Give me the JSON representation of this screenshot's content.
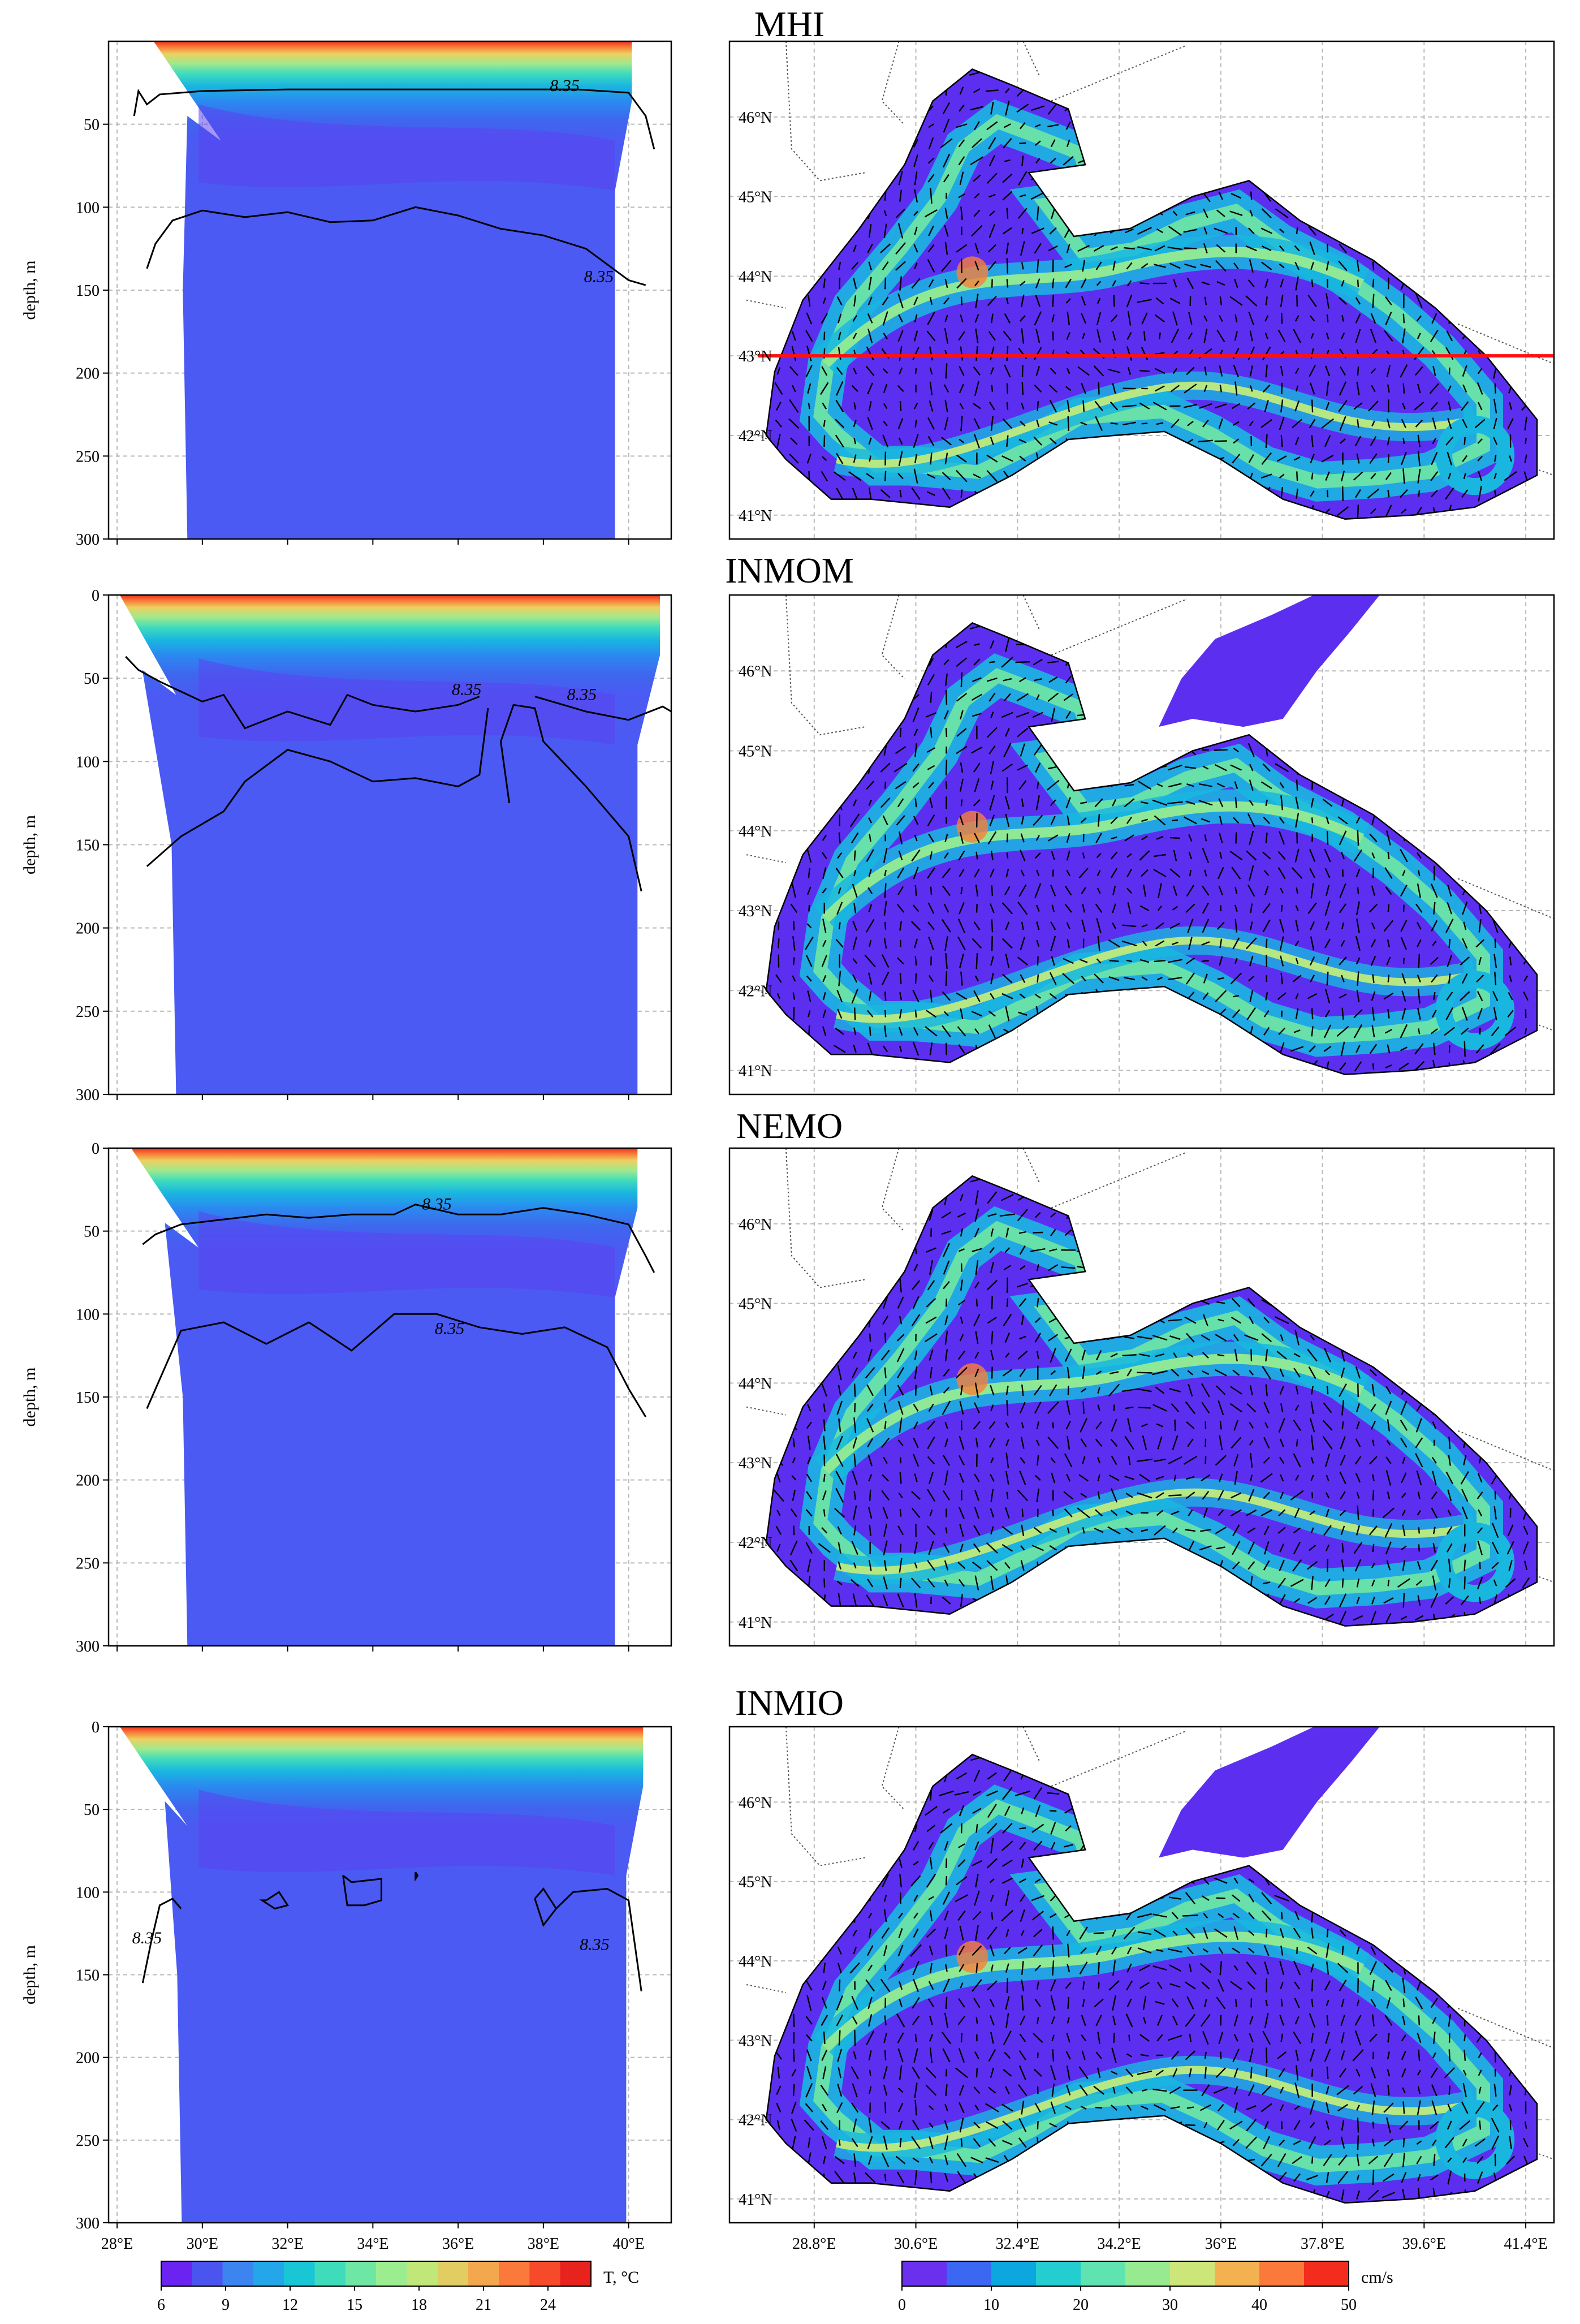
{
  "chart_data": [
    {
      "type": "contour",
      "panel": "section",
      "title": "MHI",
      "ylabel": "depth, m",
      "ylim": [
        0,
        300
      ],
      "y_inverted": true,
      "yticks": [
        "50",
        "100",
        "150",
        "200",
        "250",
        "300"
      ],
      "xlim": [
        27.8,
        41.0
      ],
      "isotherm": "8.35",
      "contours": [
        {
          "x": [
            28.4,
            28.5,
            28.7,
            29.0,
            30.0,
            32.0,
            34.0,
            36.0,
            37.5,
            38.8,
            40.0,
            40.4,
            40.6
          ],
          "y": [
            45,
            30,
            38,
            32,
            30,
            29,
            29,
            29,
            29,
            29,
            31,
            45,
            65
          ]
        },
        {
          "x": [
            28.7,
            28.9,
            29.3,
            30.0,
            31.0,
            32.0,
            33.0,
            34.0,
            35.0,
            36.0,
            37.0,
            38.0,
            39.0,
            40.0,
            40.4
          ],
          "y": [
            137,
            122,
            108,
            102,
            106,
            103,
            109,
            108,
            100,
            105,
            113,
            117,
            125,
            144,
            147
          ]
        }
      ]
    },
    {
      "type": "contour",
      "panel": "section",
      "title": "INMOM",
      "ylabel": "depth, m",
      "ylim": [
        0,
        300
      ],
      "y_inverted": true,
      "yticks": [
        "0",
        "50",
        "100",
        "150",
        "200",
        "250",
        "300"
      ],
      "xlim": [
        27.8,
        41.0
      ],
      "isotherm": "8.35",
      "contours": [
        {
          "x": [
            28.2,
            28.5,
            29.0,
            30.0,
            30.5,
            31.0,
            32.0,
            33.0,
            33.4,
            34.0,
            35.0,
            36.0,
            36.5
          ],
          "y": [
            37,
            45,
            52,
            64,
            60,
            80,
            70,
            78,
            60,
            66,
            70,
            66,
            61
          ]
        },
        {
          "x": [
            28.7,
            29.5,
            30.5,
            31.0,
            32.0,
            33.0,
            34.0,
            35.0,
            36.0,
            36.5,
            36.7
          ],
          "y": [
            163,
            145,
            130,
            112,
            93,
            100,
            112,
            110,
            115,
            108,
            68
          ]
        },
        {
          "x": [
            37.2,
            37.0,
            37.3,
            37.8,
            38.0,
            39.0,
            40.0,
            40.3
          ],
          "y": [
            125,
            88,
            66,
            68,
            88,
            115,
            145,
            178
          ]
        },
        {
          "x": [
            37.8,
            39.0,
            40.0,
            40.8,
            41.0
          ],
          "y": [
            61,
            70,
            75,
            67,
            70
          ]
        }
      ]
    },
    {
      "type": "contour",
      "panel": "section",
      "title": "NEMO",
      "ylabel": "depth, m",
      "ylim": [
        0,
        300
      ],
      "y_inverted": true,
      "yticks": [
        "0",
        "50",
        "100",
        "150",
        "200",
        "250",
        "300"
      ],
      "xlim": [
        27.8,
        41.0
      ],
      "isotherm": "8.35",
      "contours": [
        {
          "x": [
            28.6,
            28.9,
            29.5,
            30.5,
            31.5,
            32.5,
            33.5,
            34.5,
            35.0,
            36.0,
            37.0,
            38.0,
            39.0,
            40.0,
            40.4,
            40.6
          ],
          "y": [
            58,
            52,
            46,
            43,
            40,
            42,
            40,
            40,
            34,
            40,
            40,
            36,
            40,
            46,
            65,
            75
          ]
        },
        {
          "x": [
            28.7,
            29.5,
            30.5,
            31.5,
            32.5,
            33.5,
            34.5,
            35.5,
            36.5,
            37.5,
            38.5,
            39.5,
            40.0,
            40.4
          ],
          "y": [
            157,
            110,
            105,
            118,
            105,
            122,
            100,
            100,
            108,
            112,
            108,
            120,
            145,
            162
          ]
        }
      ]
    },
    {
      "type": "contour",
      "panel": "section",
      "title": "INMIO",
      "ylabel": "depth, m",
      "ylim": [
        0,
        300
      ],
      "y_inverted": true,
      "yticks": [
        "0",
        "50",
        "100",
        "150",
        "200",
        "250",
        "300"
      ],
      "xlim": [
        27.8,
        41.0
      ],
      "xticks": [
        "28°E",
        "30°E",
        "32°E",
        "34°E",
        "36°E",
        "38°E",
        "40°E"
      ],
      "isotherm": "8.35",
      "contours": [
        {
          "x": [
            28.6,
            28.8,
            29.0,
            29.3,
            29.5
          ],
          "y": [
            155,
            130,
            108,
            104,
            110
          ]
        },
        {
          "x": [
            31.5,
            31.8,
            32.0,
            31.7,
            31.4,
            31.5
          ],
          "y": [
            105,
            100,
            108,
            110,
            105,
            105
          ]
        },
        {
          "x": [
            33.3,
            33.5,
            34.2,
            34.2,
            33.8,
            33.4,
            33.3
          ],
          "y": [
            90,
            94,
            92,
            105,
            108,
            108,
            90
          ]
        },
        {
          "x": [
            35.0,
            35.05,
            35.0,
            35.0
          ],
          "y": [
            88,
            90,
            92,
            88
          ]
        },
        {
          "x": [
            37.8,
            38.0,
            38.3,
            38.0,
            37.8
          ],
          "y": [
            104,
            98,
            110,
            120,
            104
          ]
        },
        {
          "x": [
            38.3,
            38.7,
            39.5,
            40.0,
            40.3
          ],
          "y": [
            110,
            100,
            98,
            105,
            160
          ]
        }
      ]
    },
    {
      "type": "map",
      "panel": "currents",
      "lon_ticks": [
        "28.8°E",
        "30.6°E",
        "32.4°E",
        "34.2°E",
        "36°E",
        "37.8°E",
        "39.6°E",
        "41.4°E"
      ],
      "lat_ticks": [
        "41°N",
        "42°N",
        "43°N",
        "44°N",
        "45°N",
        "46°N"
      ],
      "section_line": "43°N"
    },
    {
      "type": "colorbar",
      "panel": "temperature",
      "label": "T, °C",
      "ticks": [
        "6",
        "9",
        "12",
        "15",
        "18",
        "21",
        "24"
      ],
      "range": [
        6,
        26
      ],
      "colors": [
        "#6a23f0",
        "#4a55f0",
        "#3c84f0",
        "#23a6ea",
        "#19c6d6",
        "#3fdcbc",
        "#6ee6a4",
        "#9ced90",
        "#c2e779",
        "#e2cd63",
        "#f3a84d",
        "#fb7a3b",
        "#f74a2a",
        "#e8221c"
      ]
    },
    {
      "type": "colorbar",
      "panel": "speed",
      "label": "cm/s",
      "ticks": [
        "0",
        "10",
        "20",
        "30",
        "40",
        "50"
      ],
      "range": [
        0,
        50
      ],
      "colors": [
        "#6a30ee",
        "#3c67f2",
        "#0ca7de",
        "#24cdd0",
        "#5fe3b0",
        "#98ea90",
        "#cde67a",
        "#f3b24f",
        "#fb7a3b",
        "#f42c1d"
      ]
    }
  ]
}
